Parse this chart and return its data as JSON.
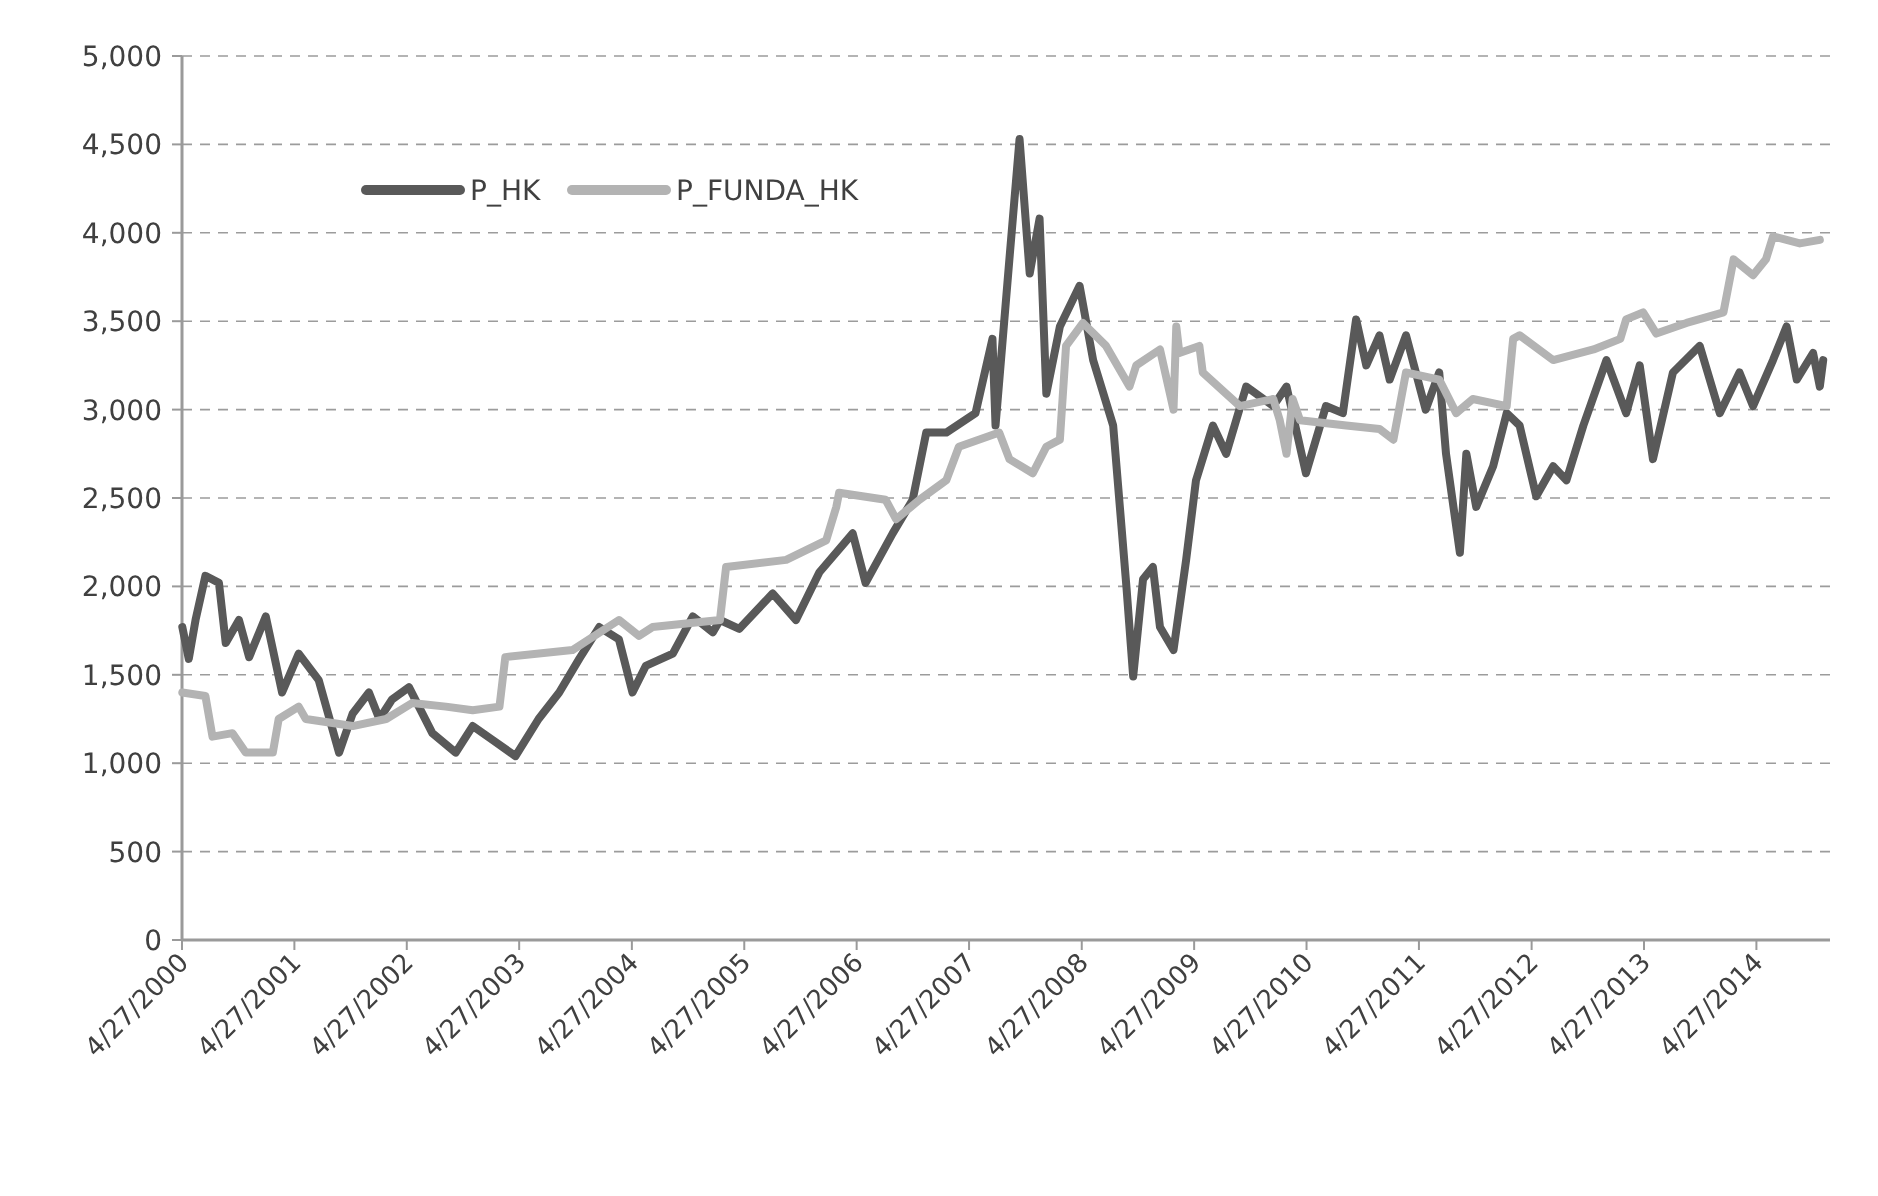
{
  "chart_data": {
    "type": "line",
    "legend": "top left",
    "grid": "y",
    "line_style": "solid",
    "marker": "none",
    "xlim": [
      "2000-04-27",
      "2014-12-22"
    ],
    "xticks": [
      {
        "value": "2000-04-27",
        "label": "4/27/2000"
      },
      {
        "value": "2001-04-27",
        "label": "4/27/2001"
      },
      {
        "value": "2002-04-27",
        "label": "4/27/2002"
      },
      {
        "value": "2003-04-27",
        "label": "4/27/2003"
      },
      {
        "value": "2004-04-27",
        "label": "4/27/2004"
      },
      {
        "value": "2005-04-27",
        "label": "4/27/2005"
      },
      {
        "value": "2006-04-27",
        "label": "4/27/2006"
      },
      {
        "value": "2007-04-27",
        "label": "4/27/2007"
      },
      {
        "value": "2008-04-27",
        "label": "4/27/2008"
      },
      {
        "value": "2009-04-27",
        "label": "4/27/2009"
      },
      {
        "value": "2010-04-27",
        "label": "4/27/2010"
      },
      {
        "value": "2011-04-27",
        "label": "4/27/2011"
      },
      {
        "value": "2012-04-27",
        "label": "4/27/2012"
      },
      {
        "value": "2013-04-27",
        "label": "4/27/2013"
      },
      {
        "value": "2014-04-27",
        "label": "4/27/2014"
      }
    ],
    "ylim": [
      0,
      5000
    ],
    "yticks": [
      0,
      500,
      {
        "value": 1000,
        "label": "1,000"
      },
      {
        "value": 1500,
        "label": "1,500"
      },
      {
        "value": 2000,
        "label": "2,000"
      },
      {
        "value": 2500,
        "label": "2,500"
      },
      {
        "value": 3000,
        "label": "3,000"
      },
      {
        "value": 3500,
        "label": "3,500"
      },
      {
        "value": 4000,
        "label": "4,000"
      },
      {
        "value": 4500,
        "label": "4,500"
      },
      {
        "value": 5000,
        "label": "5,000"
      }
    ],
    "series": [
      {
        "name": "P_HK",
        "color": "#595959",
        "x": [
          "2000-04-28",
          "2000-05-19",
          "2000-06-10",
          "2000-07-12",
          "2000-08-25",
          "2000-09-16",
          "2000-10-29",
          "2000-12-01",
          "2001-01-24",
          "2001-03-18",
          "2001-05-11",
          "2001-07-15",
          "2001-09-19",
          "2001-11-02",
          "2001-12-25",
          "2002-01-28",
          "2002-03-10",
          "2002-05-04",
          "2002-07-19",
          "2002-10-03",
          "2002-11-27",
          "2003-02-01",
          "2003-04-15",
          "2003-06-29",
          "2003-09-04",
          "2003-11-08",
          "2004-01-12",
          "2004-03-16",
          "2004-04-29",
          "2004-06-11",
          "2004-09-07",
          "2004-11-11",
          "2005-01-15",
          "2005-02-07",
          "2005-04-11",
          "2005-07-28",
          "2005-10-12",
          "2005-12-27",
          "2006-04-14",
          "2006-05-26",
          "2006-08-22",
          "2006-10-26",
          "2006-12-09",
          "2007-02-12",
          "2007-05-18",
          "2007-07-12",
          "2007-07-22",
          "2007-09-05",
          "2007-10-08",
          "2007-11-10",
          "2007-12-12",
          "2008-01-03",
          "2008-02-16",
          "2008-04-20",
          "2008-06-03",
          "2008-08-07",
          "2008-09-19",
          "2008-10-11",
          "2008-11-12",
          "2008-12-14",
          "2009-01-06",
          "2009-02-19",
          "2009-04-01",
          "2009-05-03",
          "2009-06-27",
          "2009-08-09",
          "2009-10-13",
          "2010-01-09",
          "2010-02-21",
          "2010-04-25",
          "2010-06-29",
          "2010-08-23",
          "2010-10-05",
          "2010-11-07",
          "2010-12-20",
          "2011-01-22",
          "2011-03-16",
          "2011-05-19",
          "2011-07-02",
          "2011-07-24",
          "2011-09-07",
          "2011-09-28",
          "2011-10-30",
          "2011-12-24",
          "2012-02-06",
          "2012-03-19",
          "2012-05-12",
          "2012-07-06",
          "2012-08-18",
          "2012-10-12",
          "2012-12-26",
          "2013-02-28",
          "2013-04-13",
          "2013-05-26",
          "2013-07-30",
          "2013-10-25",
          "2013-12-29",
          "2014-03-03",
          "2014-04-16",
          "2014-06-20",
          "2014-08-03",
          "2014-09-05",
          "2014-10-28",
          "2014-11-19",
          "2014-11-30"
        ],
        "values": [
          1770,
          1590,
          1810,
          2060,
          2020,
          1680,
          1810,
          1600,
          1830,
          1400,
          1620,
          1470,
          1060,
          1280,
          1400,
          1250,
          1360,
          1430,
          1170,
          1060,
          1210,
          1130,
          1040,
          1250,
          1400,
          1590,
          1770,
          1700,
          1400,
          1550,
          1620,
          1830,
          1740,
          1810,
          1760,
          1960,
          1810,
          2080,
          2300,
          2020,
          2300,
          2490,
          2870,
          2870,
          2980,
          3400,
          2910,
          3850,
          4530,
          3770,
          4080,
          3090,
          3470,
          3700,
          3280,
          2910,
          2000,
          1490,
          2040,
          2110,
          1770,
          1640,
          2150,
          2600,
          2910,
          2750,
          3130,
          3020,
          3130,
          2640,
          3020,
          2980,
          3510,
          3250,
          3420,
          3170,
          3420,
          3000,
          3210,
          2750,
          2190,
          2750,
          2450,
          2680,
          2980,
          2910,
          2510,
          2680,
          2600,
          2910,
          3280,
          2980,
          3250,
          2720,
          3210,
          3360,
          2980,
          3210,
          3020,
          3280,
          3470,
          3170,
          3320,
          3130,
          3280
        ]
      },
      {
        "name": "P_FUNDA_HK",
        "color": "#b3b3b3",
        "x": [
          "2000-04-28",
          "2000-07-12",
          "2000-08-04",
          "2000-10-08",
          "2000-11-20",
          "2001-02-16",
          "2001-03-07",
          "2001-05-11",
          "2001-06-03",
          "2001-11-02",
          "2002-02-19",
          "2002-05-14",
          "2002-09-01",
          "2002-11-27",
          "2003-02-22",
          "2003-03-13",
          "2003-10-17",
          "2004-03-16",
          "2004-05-20",
          "2004-07-03",
          "2005-02-07",
          "2005-02-27",
          "2005-09-10",
          "2006-01-18",
          "2006-02-20",
          "2006-03-01",
          "2006-07-30",
          "2006-09-02",
          "2006-11-17",
          "2007-02-12",
          "2007-03-25",
          "2007-08-03",
          "2007-09-05",
          "2007-11-20",
          "2008-01-03",
          "2008-02-16",
          "2008-03-07",
          "2008-05-01",
          "2008-07-15",
          "2008-09-29",
          "2008-10-21",
          "2009-01-06",
          "2009-02-19",
          "2009-02-28",
          "2009-03-10",
          "2009-05-14",
          "2009-05-25",
          "2009-08-09",
          "2009-09-22",
          "2010-01-09",
          "2010-01-30",
          "2010-02-21",
          "2010-03-13",
          "2010-04-06",
          "2010-09-03",
          "2010-12-20",
          "2011-02-03",
          "2011-03-16",
          "2011-07-02",
          "2011-08-26",
          "2011-10-19",
          "2012-02-06",
          "2012-02-27",
          "2012-03-19",
          "2012-07-06",
          "2012-11-14",
          "2013-02-09",
          "2013-02-28",
          "2013-04-24",
          "2013-06-06",
          "2013-09-12",
          "2014-01-10",
          "2014-02-12",
          "2014-04-16",
          "2014-05-28",
          "2014-06-20",
          "2014-09-15",
          "2014-11-19"
        ],
        "values": [
          1400,
          1380,
          1150,
          1170,
          1060,
          1060,
          1250,
          1320,
          1250,
          1210,
          1250,
          1340,
          1320,
          1300,
          1320,
          1600,
          1640,
          1810,
          1720,
          1770,
          1810,
          2110,
          2150,
          2260,
          2450,
          2530,
          2490,
          2380,
          2490,
          2600,
          2790,
          2870,
          2720,
          2640,
          2790,
          2830,
          3360,
          3490,
          3360,
          3130,
          3250,
          3340,
          3000,
          3470,
          3320,
          3360,
          3210,
          3090,
          3020,
          3060,
          2940,
          2750,
          3060,
          2940,
          2910,
          2890,
          2830,
          3210,
          3170,
          2980,
          3060,
          3020,
          3400,
          3420,
          3280,
          3340,
          3400,
          3510,
          3550,
          3430,
          3490,
          3550,
          3850,
          3760,
          3850,
          3980,
          3940,
          3960
        ]
      }
    ]
  }
}
